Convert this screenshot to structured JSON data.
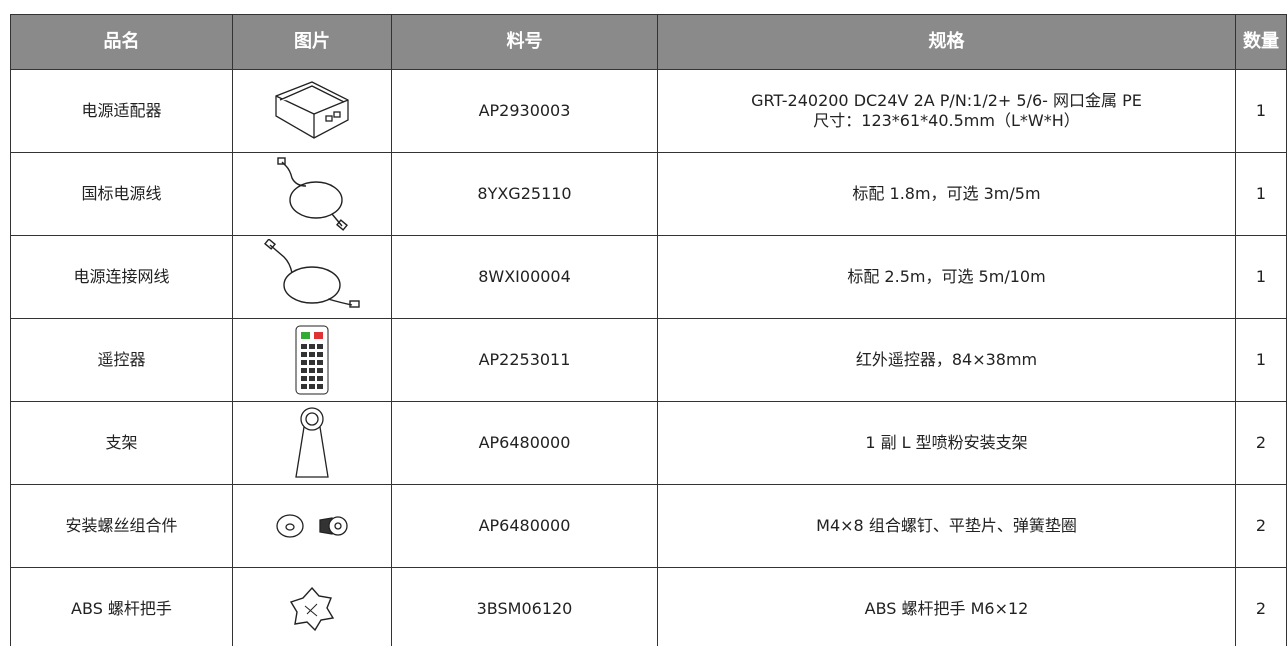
{
  "table": {
    "header": [
      "品名",
      "图片",
      "料号",
      "规格",
      "数量"
    ],
    "rows": [
      {
        "name": "电源适配器",
        "part": "AP2930003",
        "spec": [
          "GRT-240200 DC24V 2A P/N:1/2+ 5/6- 网口金属 PE",
          "尺寸：123*61*40.5mm（L*W*H）"
        ],
        "qty": "1"
      },
      {
        "name": "国标电源线",
        "part": "8YXG25110",
        "spec": [
          "标配 1.8m，可选 3m/5m"
        ],
        "qty": "1"
      },
      {
        "name": "电源连接网线",
        "part": "8WXI00004",
        "spec": [
          "标配 2.5m，可选 5m/10m"
        ],
        "qty": "1"
      },
      {
        "name": "遥控器",
        "part": "AP2253011",
        "spec": [
          "红外遥控器，84×38mm"
        ],
        "qty": "1"
      },
      {
        "name": "支架",
        "part": "AP6480000",
        "spec": [
          "1 副 L 型喷粉安装支架"
        ],
        "qty": "2"
      },
      {
        "name": "安装螺丝组合件",
        "part": "AP6480000",
        "spec": [
          "M4×8 组合螺钉、平垫片、弹簧垫圈"
        ],
        "qty": "2"
      },
      {
        "name": "ABS 螺杆把手",
        "part": "3BSM06120",
        "spec": [
          "ABS 螺杆把手 M6×12"
        ],
        "qty": "2"
      }
    ]
  }
}
